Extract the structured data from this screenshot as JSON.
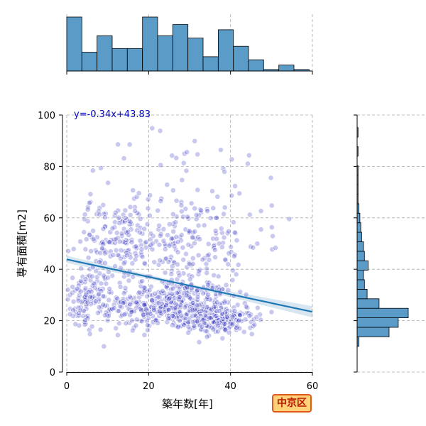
{
  "chart_data": {
    "type": "scatter",
    "title": "",
    "xlabel": "築年数[年]",
    "ylabel": "専有面積[m2]",
    "xlim": [
      0,
      60
    ],
    "ylim": [
      0,
      100
    ],
    "x_ticks": [
      0,
      20,
      40,
      60
    ],
    "y_ticks": [
      0,
      20,
      40,
      60,
      80,
      100
    ],
    "grid": true,
    "regression": {
      "slope": -0.34,
      "intercept": 43.83,
      "label": "y=-0.34x+43.83",
      "color": "#1f77b4"
    },
    "point_color": "#3030c0",
    "bar_color": "#5b9bc8",
    "point_clusters": [
      {
        "cx": 25,
        "cy": 26,
        "sx": 8,
        "sy": 5,
        "n": 420
      },
      {
        "cx": 38,
        "cy": 20,
        "sx": 4,
        "sy": 2.5,
        "n": 160
      },
      {
        "cx": 5,
        "cy": 28,
        "sx": 3,
        "sy": 6,
        "n": 120
      },
      {
        "cx": 12,
        "cy": 50,
        "sx": 6,
        "sy": 8,
        "n": 140
      },
      {
        "cx": 28,
        "cy": 50,
        "sx": 10,
        "sy": 10,
        "n": 200
      },
      {
        "cx": 30,
        "cy": 70,
        "sx": 15,
        "sy": 12,
        "n": 60
      }
    ],
    "x_histogram": {
      "bin_start": 0,
      "bin_width": 3.7,
      "counts": [
        72,
        25,
        47,
        30,
        30,
        72,
        47,
        62,
        44,
        19,
        55,
        33,
        15,
        2,
        8,
        2
      ]
    },
    "y_histogram": {
      "bin_start": 10,
      "bin_width": 3.7,
      "counts": [
        2,
        35,
        45,
        56,
        24,
        11,
        8,
        7,
        12,
        8,
        7,
        5,
        4,
        3,
        2,
        1,
        1,
        1,
        1,
        0,
        1,
        0,
        1,
        0
      ]
    }
  },
  "badge": {
    "label": "中京区",
    "fill": "#ffd27a",
    "border": "#e0581c",
    "text_color": "#b81a00"
  }
}
